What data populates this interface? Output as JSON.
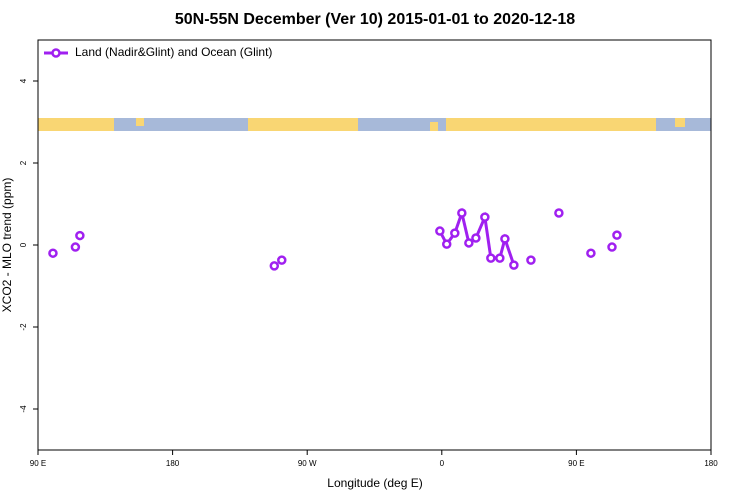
{
  "chart_data": {
    "type": "line",
    "title": "50N-55N December (Ver 10)   2015-01-01 to 2020-12-18",
    "x_label": "Longitude (deg E)",
    "y_label": "XCO2 - MLO trend (ppm)",
    "x": [
      -260,
      null,
      -245,
      null,
      -242,
      null,
      -112,
      null,
      -107,
      null,
      -1.3,
      3.3,
      8.7,
      13.4,
      18.1,
      22.8,
      28.8,
      32.8,
      38.8,
      42.2,
      48.2,
      null,
      59.6,
      null,
      78.3,
      null,
      99.7,
      null,
      113.8,
      null,
      117.1
    ],
    "series": [
      {
        "name": "Land (Nadir&Glint) and Ocean (Glint)",
        "color": "#a020f0",
        "values": [
          -0.2,
          null,
          -0.05,
          null,
          0.23,
          null,
          -0.51,
          null,
          -0.37,
          null,
          0.34,
          0.02,
          0.29,
          0.78,
          0.05,
          0.17,
          0.68,
          -0.32,
          -0.32,
          0.15,
          -0.49,
          null,
          -0.37,
          null,
          0.78,
          null,
          -0.2,
          null,
          -0.05,
          null,
          0.24
        ]
      }
    ],
    "xlim": [
      -270,
      180
    ],
    "ylim": [
      -5,
      5
    ],
    "xticks": [
      {
        "value": -270,
        "label": "90 E"
      },
      {
        "value": -180,
        "label": "180"
      },
      {
        "value": -90,
        "label": "90 W"
      },
      0,
      {
        "value": 90,
        "label": "90 E"
      },
      {
        "value": 180,
        "label": "180"
      }
    ],
    "yticks": [
      -4,
      -2,
      0,
      2,
      4
    ],
    "legend": "top-left"
  }
}
